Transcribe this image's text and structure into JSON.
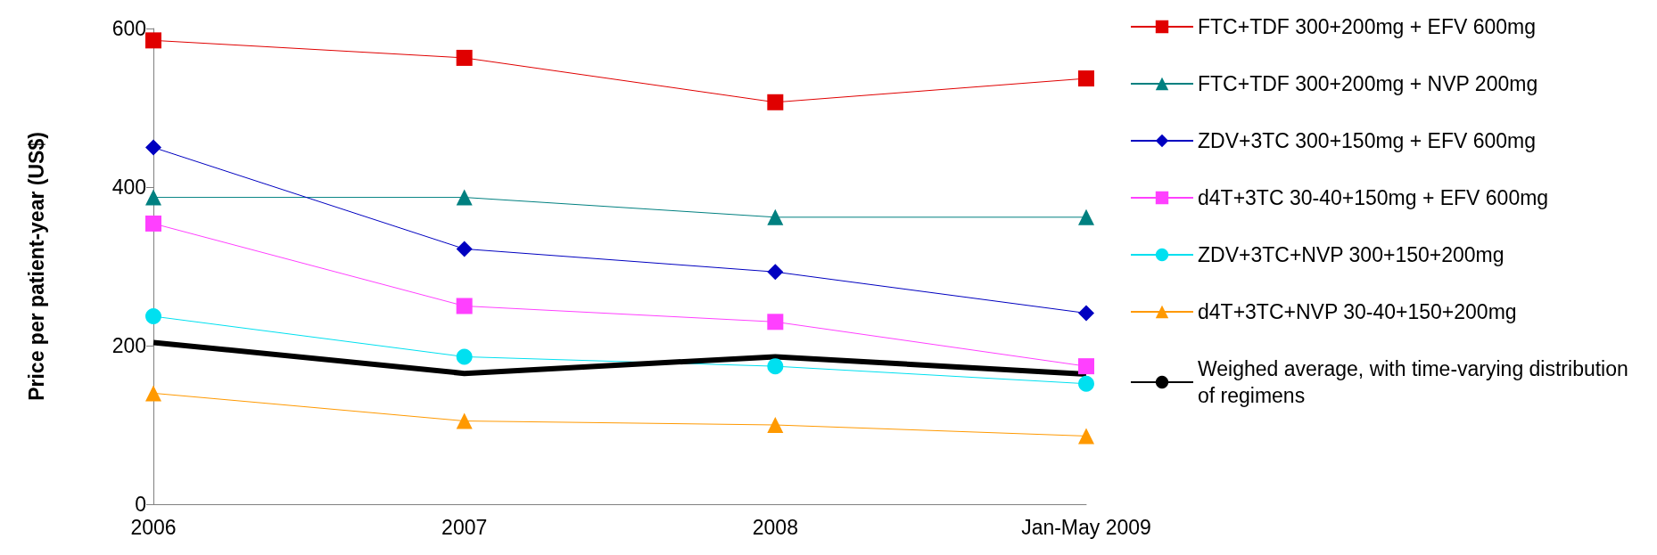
{
  "chart_data": {
    "type": "line",
    "ylabel": "Price per patient-year (US$)",
    "categories": [
      "2006",
      "2007",
      "2008",
      "Jan-May 2009"
    ],
    "ylim": [
      0,
      600
    ],
    "yticks": [
      0,
      200,
      400,
      600
    ],
    "grid": false,
    "legend": "right",
    "series": [
      {
        "name": "FTC+TDF 300+200mg + EFV 600mg",
        "color": "#e00000",
        "marker": "square",
        "values": [
          585,
          563,
          507,
          537
        ]
      },
      {
        "name": "FTC+TDF 300+200mg + NVP 200mg",
        "color": "#008080",
        "marker": "triangle",
        "values": [
          387,
          387,
          362,
          362
        ]
      },
      {
        "name": "ZDV+3TC 300+150mg + EFV 600mg",
        "color": "#0000c0",
        "marker": "diamond",
        "values": [
          450,
          322,
          293,
          241
        ]
      },
      {
        "name": "d4T+3TC 30-40+150mg + EFV 600mg",
        "color": "#ff40ff",
        "marker": "square",
        "values": [
          354,
          250,
          230,
          174
        ]
      },
      {
        "name": "ZDV+3TC+NVP 300+150+200mg",
        "color": "#00e0f0",
        "marker": "circle",
        "values": [
          237,
          186,
          174,
          152
        ]
      },
      {
        "name": "d4T+3TC+NVP 30-40+150+200mg",
        "color": "#ff9900",
        "marker": "triangle",
        "values": [
          140,
          105,
          100,
          86
        ]
      },
      {
        "name": "Weighed average, with time-varying distribution of regimens",
        "color": "#000000",
        "marker": "none",
        "values": [
          204,
          165,
          186,
          164
        ]
      }
    ]
  }
}
